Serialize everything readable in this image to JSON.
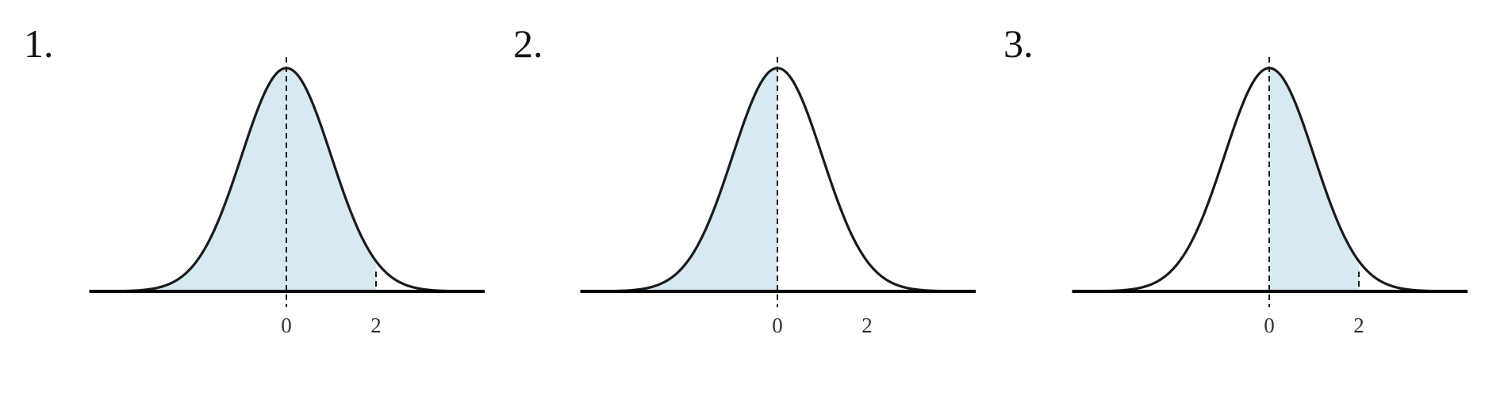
{
  "accent_colors": {
    "shade": "#d7eaf2",
    "curve": "#1a1a1a",
    "axis": "#000000"
  },
  "panels": [
    {
      "number": "1.",
      "tick_labels": [
        "0",
        "2"
      ],
      "shaded_from": null,
      "shaded_to": 2,
      "marker_at": 2
    },
    {
      "number": "2.",
      "tick_labels": [
        "0",
        "2"
      ],
      "shaded_from": null,
      "shaded_to": 0,
      "marker_at": null
    },
    {
      "number": "3.",
      "tick_labels": [
        "0",
        "2"
      ],
      "shaded_from": 0,
      "shaded_to": 2,
      "marker_at": 2
    }
  ]
}
